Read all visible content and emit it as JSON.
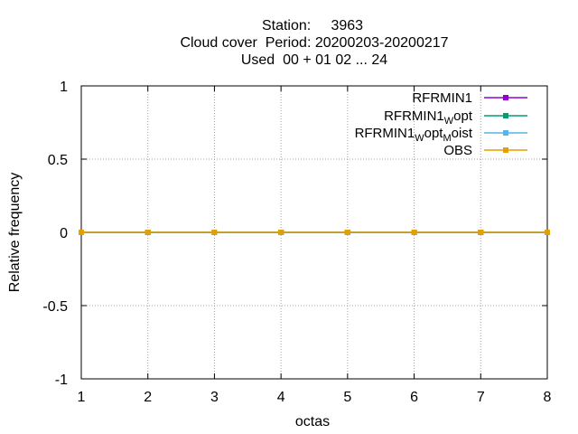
{
  "chart_data": {
    "type": "line",
    "title_lines": [
      "Station:     3963",
      "Cloud cover  Period: 20200203-20200217",
      "Used  00 + 01 02 ... 24"
    ],
    "xlabel": "octas",
    "ylabel": "Relative frequency",
    "xlim": [
      1,
      8
    ],
    "ylim": [
      -1,
      1
    ],
    "x_ticks": [
      "1",
      "2",
      "3",
      "4",
      "5",
      "6",
      "7",
      "8"
    ],
    "y_ticks": [
      "1",
      "0.5",
      "0",
      "-0.5",
      "-1"
    ],
    "y_tick_values": [
      1,
      0.5,
      0,
      -0.5,
      -1
    ],
    "grid": true,
    "legend_position": "top-right",
    "x": [
      1,
      2,
      3,
      4,
      5,
      6,
      7,
      8
    ],
    "series": [
      {
        "name": "RFRMIN1",
        "name_main": "RFRMIN1",
        "color": "#9400d3",
        "values": [
          0,
          0,
          0,
          0,
          0,
          0,
          0,
          0
        ]
      },
      {
        "name": "RFRMIN1_Wopt",
        "name_main": "RFRMIN1",
        "name_sub": "W",
        "name_rest": "opt",
        "color": "#009e73",
        "values": [
          0,
          0,
          0,
          0,
          0,
          0,
          0,
          0
        ]
      },
      {
        "name": "RFRMIN1_Wopt_Moist",
        "name_main": "RFRMIN1",
        "name_sub": "W",
        "name_rest": "opt",
        "name_sub2": "M",
        "name_rest2": "oist",
        "color": "#56b4e9",
        "values": [
          0,
          0,
          0,
          0,
          0,
          0,
          0,
          0
        ]
      },
      {
        "name": "OBS",
        "name_main": "OBS",
        "color": "#e69f00",
        "values": [
          0,
          0,
          0,
          0,
          0,
          0,
          0,
          0
        ]
      }
    ]
  }
}
